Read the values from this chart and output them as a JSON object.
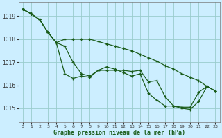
{
  "background_color": "#cceeff",
  "grid_color": "#99cccc",
  "line_color": "#1a5c1a",
  "marker_color": "#1a5c1a",
  "title": "Graphe pression niveau de la mer (hPa)",
  "xlim": [
    -0.5,
    23.5
  ],
  "ylim": [
    1014.4,
    1019.6
  ],
  "yticks": [
    1015,
    1016,
    1017,
    1018,
    1019
  ],
  "xticks": [
    0,
    1,
    2,
    3,
    4,
    5,
    6,
    7,
    8,
    9,
    10,
    11,
    12,
    13,
    14,
    15,
    16,
    17,
    18,
    19,
    20,
    21,
    22,
    23
  ],
  "series": [
    [
      1019.3,
      1019.1,
      null,
      null,
      null,
      null,
      null,
      null,
      null,
      null,
      null,
      null,
      null,
      null,
      null,
      null,
      null,
      null,
      null,
      null,
      null,
      null,
      null,
      null
    ],
    [
      1019.3,
      1019.1,
      1018.85,
      1018.3,
      1017.85,
      1017.7,
      1017.0,
      1016.5,
      1016.4,
      1016.65,
      1016.65,
      1016.65,
      1016.65,
      1016.6,
      1016.65,
      1016.15,
      1016.2,
      1015.5,
      1015.1,
      1015.05,
      1015.05,
      1015.7,
      1015.95,
      1015.75
    ],
    [
      1019.3,
      1019.1,
      1018.85,
      1018.3,
      1017.85,
      1016.5,
      1016.3,
      1016.4,
      1016.35,
      1016.65,
      1016.8,
      1016.7,
      1016.55,
      1016.4,
      1016.5,
      1015.65,
      1015.35,
      1015.1,
      1015.1,
      1015.0,
      1014.95,
      1015.3,
      1015.95,
      1015.75
    ],
    [
      1019.3,
      1019.1,
      1018.85,
      1018.3,
      1017.85,
      1018.0,
      1018.0,
      1018.0,
      1018.0,
      1017.9,
      1017.8,
      1017.7,
      1017.6,
      1017.5,
      1017.35,
      1017.2,
      1017.05,
      1016.85,
      1016.7,
      1016.5,
      1016.35,
      1016.2,
      1015.95,
      1015.75
    ]
  ]
}
